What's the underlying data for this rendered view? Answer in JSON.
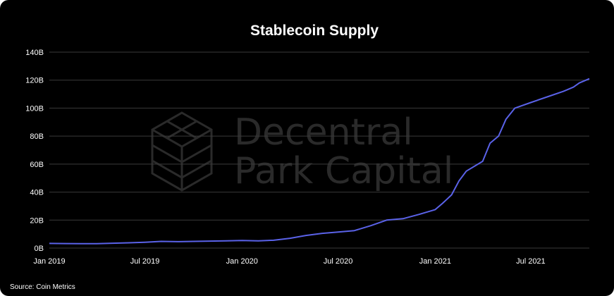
{
  "chart_data": {
    "type": "line",
    "title": "Stablecoin Supply",
    "xlabel": "",
    "ylabel": "",
    "source": "Source: Coin Metrics",
    "watermark": [
      "Decentral",
      "Park Capital"
    ],
    "line_color": "#5a62e8",
    "grid_color": "#3a3a3a",
    "background_color": "#000000",
    "x_range": [
      "2019-01-01",
      "2021-10-20"
    ],
    "ylim": [
      0,
      140
    ],
    "y_ticks": [
      {
        "value": 0,
        "label": "0B"
      },
      {
        "value": 20,
        "label": "20B"
      },
      {
        "value": 40,
        "label": "40B"
      },
      {
        "value": 60,
        "label": "60B"
      },
      {
        "value": 80,
        "label": "80B"
      },
      {
        "value": 100,
        "label": "100B"
      },
      {
        "value": 120,
        "label": "120B"
      },
      {
        "value": 140,
        "label": "140B"
      }
    ],
    "x_ticks": [
      {
        "date": "2019-01-01",
        "label": "Jan 2019"
      },
      {
        "date": "2019-07-01",
        "label": "Jul 2019"
      },
      {
        "date": "2020-01-01",
        "label": "Jan 2020"
      },
      {
        "date": "2020-07-01",
        "label": "Jul 2020"
      },
      {
        "date": "2021-01-01",
        "label": "Jan 2021"
      },
      {
        "date": "2021-07-01",
        "label": "Jul 2021"
      }
    ],
    "grid": true,
    "series": [
      {
        "points": [
          [
            "2019-01-01",
            3.3
          ],
          [
            "2019-02-01",
            3.2
          ],
          [
            "2019-03-01",
            3.1
          ],
          [
            "2019-04-01",
            3.1
          ],
          [
            "2019-05-01",
            3.5
          ],
          [
            "2019-06-01",
            3.8
          ],
          [
            "2019-07-01",
            4.2
          ],
          [
            "2019-08-01",
            4.8
          ],
          [
            "2019-09-01",
            4.6
          ],
          [
            "2019-10-01",
            4.8
          ],
          [
            "2019-11-01",
            5.0
          ],
          [
            "2019-12-01",
            5.2
          ],
          [
            "2020-01-01",
            5.4
          ],
          [
            "2020-02-01",
            5.2
          ],
          [
            "2020-03-01",
            5.6
          ],
          [
            "2020-04-01",
            7.0
          ],
          [
            "2020-05-01",
            9.0
          ],
          [
            "2020-06-01",
            10.5
          ],
          [
            "2020-07-01",
            11.5
          ],
          [
            "2020-08-01",
            12.5
          ],
          [
            "2020-09-01",
            16.0
          ],
          [
            "2020-10-01",
            20.0
          ],
          [
            "2020-11-01",
            21.0
          ],
          [
            "2020-12-01",
            24.0
          ],
          [
            "2021-01-01",
            27.5
          ],
          [
            "2021-01-15",
            32.0
          ],
          [
            "2021-02-01",
            38.0
          ],
          [
            "2021-02-15",
            48.0
          ],
          [
            "2021-03-01",
            55.0
          ],
          [
            "2021-04-01",
            62.0
          ],
          [
            "2021-04-15",
            75.0
          ],
          [
            "2021-05-01",
            80.0
          ],
          [
            "2021-05-15",
            92.0
          ],
          [
            "2021-06-01",
            100.0
          ],
          [
            "2021-07-01",
            104.0
          ],
          [
            "2021-08-01",
            108.0
          ],
          [
            "2021-09-01",
            112.0
          ],
          [
            "2021-09-20",
            115.0
          ],
          [
            "2021-10-01",
            118.0
          ],
          [
            "2021-10-20",
            121.0
          ]
        ]
      }
    ]
  }
}
